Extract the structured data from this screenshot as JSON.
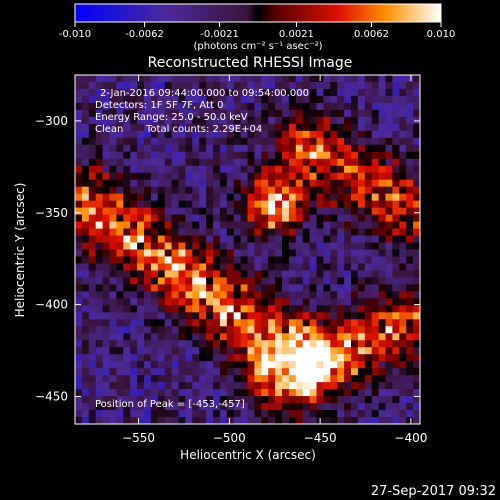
{
  "colorbar": {
    "tick_labels": [
      "-0.010",
      "-0.0062",
      "-0.0021",
      "0.0021",
      "0.0062",
      "0.010"
    ],
    "tick_values": [
      -0.01,
      -0.0062,
      -0.0021,
      0.0021,
      0.0062,
      0.01
    ],
    "range": [
      -0.01,
      0.01
    ],
    "unit_label": "(photons cm⁻² s⁻¹ asec⁻²)"
  },
  "chart_data": {
    "type": "heatmap",
    "title": "Reconstructed RHESSI Image",
    "xlabel": "Heliocentric X (arcsec)",
    "ylabel": "Heliocentric Y (arcsec)",
    "xlim": [
      -585,
      -395
    ],
    "ylim": [
      -465,
      -275
    ],
    "x_ticks": [
      -550,
      -500,
      -450,
      -400
    ],
    "x_tick_labels": [
      "−550",
      "−500",
      "−450",
      "−400"
    ],
    "y_ticks": [
      -300,
      -350,
      -400,
      -450
    ],
    "y_tick_labels": [
      "−300",
      "−350",
      "−400",
      "−450"
    ],
    "grid": false,
    "peak": [
      -453,
      -457
    ],
    "features": [
      {
        "name": "compact source",
        "center": [
          -475,
          -345
        ],
        "intensity": 0.0075
      },
      {
        "name": "diagonal ribbon",
        "from": [
          -580,
          -345
        ],
        "to": [
          -460,
          -430
        ],
        "intensity": 0.0065
      },
      {
        "name": "right ribbon",
        "from": [
          -455,
          -315
        ],
        "to": [
          -400,
          -350
        ],
        "intensity": 0.0055
      },
      {
        "name": "lower-right ribbon",
        "from": [
          -470,
          -440
        ],
        "to": [
          -400,
          -410
        ],
        "intensity": 0.006
      }
    ]
  },
  "annotations": {
    "time_range": "2-Jan-2016 09:44:00.000 to 09:54:00.000",
    "detectors": "Detectors: 1F 5F 7F, Att 0",
    "energy": "Energy Range: 25.0 - 50.0 keV",
    "clean": "Clean",
    "total_counts": "Total counts: 2.29E+04",
    "peak_position": "Position of Peak = [-453,-457]"
  },
  "footer_timestamp": "27-Sep-2017 09:32"
}
